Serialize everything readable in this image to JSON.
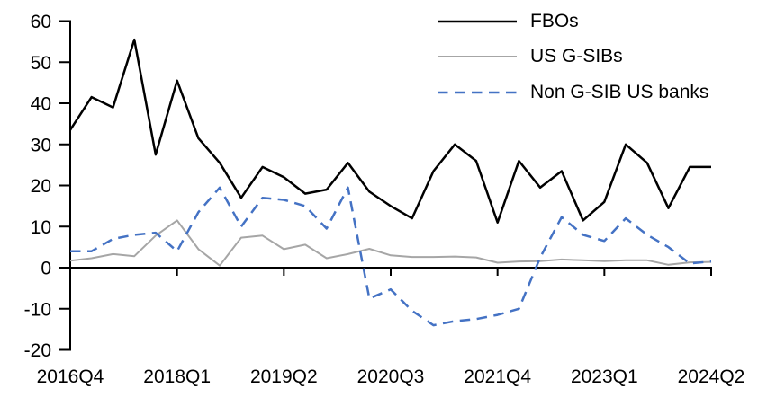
{
  "chart_data": {
    "type": "line",
    "title": "",
    "x": [
      "2016Q4",
      "2017Q1",
      "2017Q2",
      "2017Q3",
      "2017Q4",
      "2018Q1",
      "2018Q2",
      "2018Q3",
      "2018Q4",
      "2019Q1",
      "2019Q2",
      "2019Q3",
      "2019Q4",
      "2020Q1",
      "2020Q2",
      "2020Q3",
      "2020Q4",
      "2021Q1",
      "2021Q2",
      "2021Q3",
      "2021Q4",
      "2022Q1",
      "2022Q2",
      "2022Q3",
      "2022Q4",
      "2023Q1",
      "2023Q2",
      "2023Q3",
      "2023Q4",
      "2024Q1",
      "2024Q2"
    ],
    "series": [
      {
        "id": "fbos",
        "name": "FBOs",
        "color": "#000000",
        "style": "solid",
        "width": 2.5,
        "values": [
          33.5,
          41.5,
          39,
          55.5,
          27.5,
          45.5,
          31.5,
          25.5,
          17,
          24.5,
          22,
          18,
          19,
          25.5,
          18.5,
          15,
          12,
          23.5,
          30,
          26,
          11,
          26,
          19.5,
          23.5,
          11.5,
          16,
          30,
          25.5,
          14.5,
          24.5,
          24.5
        ]
      },
      {
        "id": "us-gsibs",
        "name": "US G-SIBs",
        "color": "#A6A6A6",
        "style": "solid",
        "width": 2,
        "values": [
          1.7,
          2.3,
          3.3,
          2.8,
          7.8,
          11.5,
          4.5,
          0.5,
          7.3,
          7.8,
          4.5,
          5.6,
          2.3,
          3.3,
          4.6,
          3,
          2.6,
          2.6,
          2.7,
          2.5,
          1.2,
          1.5,
          1.6,
          2,
          1.8,
          1.6,
          1.8,
          1.8,
          0.7,
          1.3,
          1.4
        ]
      },
      {
        "id": "non-gsib-us-banks",
        "name": "Non G-SIB US banks",
        "color": "#4472C4",
        "style": "dashed",
        "width": 2.5,
        "values": [
          4,
          4,
          7,
          8,
          8.5,
          4,
          13.5,
          19.5,
          10,
          17,
          16.5,
          15,
          9.5,
          19.5,
          -7.5,
          -5.3,
          -10.5,
          -14,
          -13,
          -12.5,
          -11.5,
          -10,
          2.5,
          12.3,
          8,
          6.5,
          12,
          8,
          5,
          1,
          1.5
        ]
      }
    ],
    "ylim": [
      -20,
      60
    ],
    "y_tick_step": 10,
    "y_tick_labels": [
      "60",
      "50",
      "40",
      "30",
      "20",
      "10",
      "0",
      "-10",
      "-20"
    ],
    "x_tick_labels": [
      "2016Q4",
      "2018Q1",
      "2019Q2",
      "2020Q3",
      "2021Q4",
      "2023Q1",
      "2024Q2"
    ],
    "x_tick_indices": [
      0,
      5,
      10,
      15,
      20,
      25,
      30
    ],
    "grid": false,
    "legend_position": "top-right",
    "background": "#FFFFFF",
    "axis_color": "#000000"
  }
}
